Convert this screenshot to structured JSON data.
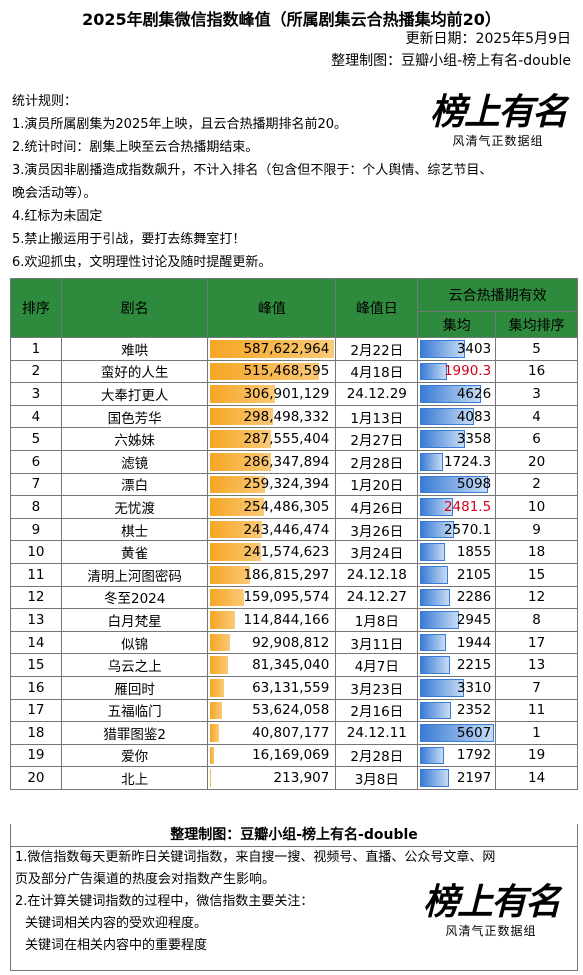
{
  "title": "2025年剧集微信指数峰值（所属剧集云合热播集均前20）",
  "updated": "更新日期：2025年5月9日",
  "made_by": "整理制图：豆瓣小组-榜上有名-double",
  "rules": [
    "统计规则：",
    "1.演员所属剧集为2025年上映，且云合热播期排名前20。",
    "2.统计时间：剧集上映至云合热播期结束。",
    "3.演员因非剧播造成指数飙升，不计入排名（包含但不限于：个人舆情、综艺节目、",
    "晚会活动等）。",
    "4.红标为未固定",
    "5.禁止搬运用于引战，要打去练舞室打！",
    "6.欢迎抓虫，文明理性讨论及随时提醒更新。"
  ],
  "logo": {
    "main": "榜上有名",
    "sub": "风清气正数据组"
  },
  "table": {
    "headers": {
      "rank": "排序",
      "name": "剧名",
      "peak": "峰值",
      "peak_date": "峰值日",
      "yunhe": "云合热播期有效",
      "avg": "集均",
      "avg_rank": "集均排序"
    },
    "rows": [
      {
        "rank": "1",
        "name": "难哄",
        "peak": "587,622,964",
        "peak_num": 587622964,
        "date": "2月22日",
        "avg": "3403",
        "avg_num": 3403,
        "avg_rank": "5",
        "red": false
      },
      {
        "rank": "2",
        "name": "蛮好的人生",
        "peak": "515,468,595",
        "peak_num": 515468595,
        "date": "4月18日",
        "avg": "1990.3",
        "avg_num": 1990.3,
        "avg_rank": "16",
        "red": true
      },
      {
        "rank": "3",
        "name": "大奉打更人",
        "peak": "306,901,129",
        "peak_num": 306901129,
        "date": "24.12.29",
        "avg": "4626",
        "avg_num": 4626,
        "avg_rank": "3",
        "red": false
      },
      {
        "rank": "4",
        "name": "国色芳华",
        "peak": "298,498,332",
        "peak_num": 298498332,
        "date": "1月13日",
        "avg": "4083",
        "avg_num": 4083,
        "avg_rank": "4",
        "red": false
      },
      {
        "rank": "5",
        "name": "六姊妹",
        "peak": "287,555,404",
        "peak_num": 287555404,
        "date": "2月27日",
        "avg": "3358",
        "avg_num": 3358,
        "avg_rank": "6",
        "red": false
      },
      {
        "rank": "6",
        "name": "滤镜",
        "peak": "286,347,894",
        "peak_num": 286347894,
        "date": "2月28日",
        "avg": "1724.3",
        "avg_num": 1724.3,
        "avg_rank": "20",
        "red": false
      },
      {
        "rank": "7",
        "name": "漂白",
        "peak": "259,324,394",
        "peak_num": 259324394,
        "date": "1月20日",
        "avg": "5098",
        "avg_num": 5098,
        "avg_rank": "2",
        "red": false
      },
      {
        "rank": "8",
        "name": "无忧渡",
        "peak": "254,486,305",
        "peak_num": 254486305,
        "date": "4月26日",
        "avg": "2481.5",
        "avg_num": 2481.5,
        "avg_rank": "10",
        "red": true
      },
      {
        "rank": "9",
        "name": "棋士",
        "peak": "243,446,474",
        "peak_num": 243446474,
        "date": "3月26日",
        "avg": "2570.1",
        "avg_num": 2570.1,
        "avg_rank": "9",
        "red": false
      },
      {
        "rank": "10",
        "name": "黄雀",
        "peak": "241,574,623",
        "peak_num": 241574623,
        "date": "3月24日",
        "avg": "1855",
        "avg_num": 1855,
        "avg_rank": "18",
        "red": false
      },
      {
        "rank": "11",
        "name": "清明上河图密码",
        "peak": "186,815,297",
        "peak_num": 186815297,
        "date": "24.12.18",
        "avg": "2105",
        "avg_num": 2105,
        "avg_rank": "15",
        "red": false
      },
      {
        "rank": "12",
        "name": "冬至2024",
        "peak": "159,095,574",
        "peak_num": 159095574,
        "date": "24.12.27",
        "avg": "2286",
        "avg_num": 2286,
        "avg_rank": "12",
        "red": false
      },
      {
        "rank": "13",
        "name": "白月梵星",
        "peak": "114,844,166",
        "peak_num": 114844166,
        "date": "1月8日",
        "avg": "2945",
        "avg_num": 2945,
        "avg_rank": "8",
        "red": false
      },
      {
        "rank": "14",
        "name": "似锦",
        "peak": "92,908,812",
        "peak_num": 92908812,
        "date": "3月11日",
        "avg": "1944",
        "avg_num": 1944,
        "avg_rank": "17",
        "red": false
      },
      {
        "rank": "15",
        "name": "乌云之上",
        "peak": "81,345,040",
        "peak_num": 81345040,
        "date": "4月7日",
        "avg": "2215",
        "avg_num": 2215,
        "avg_rank": "13",
        "red": false
      },
      {
        "rank": "16",
        "name": "雁回时",
        "peak": "63,131,559",
        "peak_num": 63131559,
        "date": "3月23日",
        "avg": "3310",
        "avg_num": 3310,
        "avg_rank": "7",
        "red": false
      },
      {
        "rank": "17",
        "name": "五福临门",
        "peak": "53,624,058",
        "peak_num": 53624058,
        "date": "2月16日",
        "avg": "2352",
        "avg_num": 2352,
        "avg_rank": "11",
        "red": false
      },
      {
        "rank": "18",
        "name": "猎罪图鉴2",
        "peak": "40,807,177",
        "peak_num": 40807177,
        "date": "24.12.11",
        "avg": "5607",
        "avg_num": 5607,
        "avg_rank": "1",
        "red": false
      },
      {
        "rank": "19",
        "name": "爱你",
        "peak": "16,169,069",
        "peak_num": 16169069,
        "date": "2月28日",
        "avg": "1792",
        "avg_num": 1792,
        "avg_rank": "19",
        "red": false
      },
      {
        "rank": "20",
        "name": "北上",
        "peak": "213,907",
        "peak_num": 213907,
        "date": "3月8日",
        "avg": "2197",
        "avg_num": 2197,
        "avg_rank": "14",
        "red": false
      }
    ]
  },
  "footer": {
    "title": "整理制图：豆瓣小组-榜上有名-double",
    "lines": [
      "1.微信指数每天更新昨日关键词指数，来自搜一搜、视频号、直播、公众号文章、网",
      "页及部分广告渠道的热度会对指数产生影响。",
      "2.在计算关键词指数的过程中，微信指数主要关注：",
      "关键词相关内容的受欢迎程度。",
      "关键词在相关内容中的重要程度"
    ]
  },
  "colors": {
    "header_green": "#2e8b3e",
    "peak_bar": "#f5a623",
    "avg_bar": "#3a7bd5",
    "unfixed_red": "#d0021b"
  }
}
